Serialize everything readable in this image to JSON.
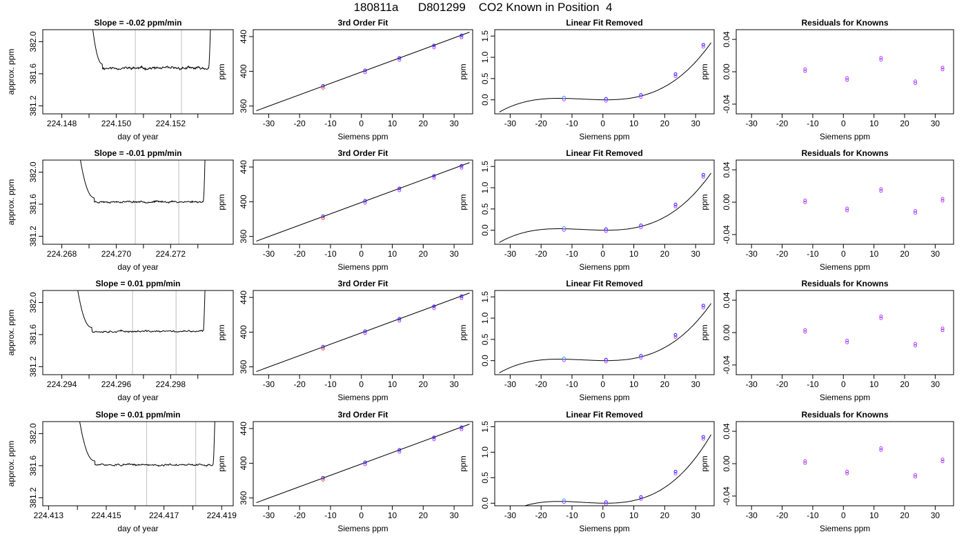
{
  "page": {
    "title": "180811a      D801299    CO2 Known in Position  4"
  },
  "chart_data": [
    {
      "row": 1,
      "col": 1,
      "type": "line",
      "title": "Slope =  -0.02  ppm/min",
      "xlabel": "day of year",
      "ylabel": "approx. ppm",
      "xlim": [
        224.1473,
        224.1543
      ],
      "ylim": [
        381.1,
        382.15
      ],
      "xticks": [
        224.148,
        224.149,
        224.15,
        224.151,
        224.152,
        224.153
      ],
      "xtick_labels": [
        "224.148",
        "",
        "224.150",
        "",
        "224.152",
        ""
      ],
      "yticks": [
        381.2,
        381.6,
        382.0
      ],
      "ytick_labels": [
        "381.2",
        "381.6",
        "382.0"
      ],
      "vlines": [
        224.1507,
        224.1524
      ],
      "trace": {
        "start": 224.149,
        "end": 224.1535,
        "flat_from": 224.1495,
        "flat_to": 224.1534,
        "level": 381.67,
        "noise": 0.014,
        "seed": 11
      }
    },
    {
      "row": 1,
      "col": 2,
      "type": "scatter",
      "title": "3rd Order Fit",
      "xlabel": "Siemens ppm",
      "ylabel": "ppm",
      "xlim": [
        -35,
        36
      ],
      "ylim": [
        351,
        448
      ],
      "xticks": [
        -30,
        -20,
        -10,
        0,
        10,
        20,
        30
      ],
      "xtick_labels": [
        "-30",
        "-20",
        "-10",
        "0",
        "10",
        "20",
        "30"
      ],
      "yticks": [
        360,
        400,
        440
      ],
      "ytick_labels": [
        "360",
        "400",
        "440"
      ],
      "line": {
        "from": [
          -34,
          354.6
        ],
        "to": [
          35,
          445.1
        ]
      },
      "points": [
        [
          -12.4,
          382.1
        ],
        [
          1.2,
          399.9
        ],
        [
          12.3,
          414.2
        ],
        [
          23.5,
          428.6
        ],
        [
          32.4,
          440.2
        ]
      ]
    },
    {
      "row": 1,
      "col": 3,
      "type": "scatter",
      "title": "Linear Fit Removed",
      "xlabel": "Siemens ppm",
      "ylabel": "ppm",
      "xlim": [
        -35,
        36
      ],
      "ylim": [
        -0.33,
        1.65
      ],
      "xticks": [
        -30,
        -20,
        -10,
        0,
        10,
        20,
        30
      ],
      "xtick_labels": [
        "-30",
        "-20",
        "-10",
        "0",
        "10",
        "20",
        "30"
      ],
      "yticks": [
        0,
        0.5,
        1.0,
        1.5
      ],
      "ytick_labels": [
        "0.0",
        "0.5",
        "1.0",
        "1.5"
      ],
      "curve": {
        "x0": 1.0,
        "c2": 0.000466,
        "c3": 2.05e-05,
        "from": -33.5,
        "to": 35
      },
      "points": [
        [
          -12.6,
          0.03
        ],
        [
          1.0,
          0.0
        ],
        [
          12.3,
          0.09
        ],
        [
          23.5,
          0.58
        ],
        [
          32.5,
          1.27
        ]
      ]
    },
    {
      "row": 1,
      "col": 4,
      "type": "scatter",
      "title": "Residuals for Knowns",
      "xlabel": "Siemens ppm",
      "ylabel": "ppm",
      "xlim": [
        -35,
        36
      ],
      "ylim": [
        -0.052,
        0.052
      ],
      "xticks": [
        -30,
        -20,
        -10,
        0,
        10,
        20,
        30
      ],
      "xtick_labels": [
        "-30",
        "-20",
        "-10",
        "0",
        "10",
        "20",
        "30"
      ],
      "yticks": [
        -0.04,
        0.0,
        0.04
      ],
      "ytick_labels": [
        "-0.04",
        "0.00",
        "0.04"
      ],
      "points": [
        [
          -12.5,
          0.002
        ],
        [
          1.2,
          -0.009
        ],
        [
          12.3,
          0.016
        ],
        [
          23.5,
          -0.013
        ],
        [
          32.4,
          0.004
        ]
      ]
    },
    {
      "row": 2,
      "col": 1,
      "type": "line",
      "title": "Slope =  -0.01  ppm/min",
      "xlabel": "day of year",
      "ylabel": "approx. ppm",
      "xlim": [
        224.2673,
        224.2743
      ],
      "ylim": [
        381.1,
        382.15
      ],
      "xticks": [
        224.268,
        224.269,
        224.27,
        224.271,
        224.272,
        224.273
      ],
      "xtick_labels": [
        "224.268",
        "",
        "224.270",
        "",
        "224.272",
        ""
      ],
      "yticks": [
        381.2,
        381.6,
        382.0
      ],
      "ytick_labels": [
        "381.2",
        "381.6",
        "382.0"
      ],
      "vlines": [
        224.2707,
        224.2723
      ],
      "trace": {
        "start": 224.2685,
        "end": 224.2733,
        "flat_from": 224.2692,
        "flat_to": 224.2732,
        "level": 381.63,
        "noise": 0.01,
        "seed": 23
      }
    },
    {
      "row": 2,
      "col": 2,
      "type": "scatter",
      "title": "3rd Order Fit",
      "xlabel": "Siemens ppm",
      "ylabel": "ppm",
      "xlim": [
        -35,
        36
      ],
      "ylim": [
        351,
        448
      ],
      "xticks": [
        -30,
        -20,
        -10,
        0,
        10,
        20,
        30
      ],
      "xtick_labels": [
        "-30",
        "-20",
        "-10",
        "0",
        "10",
        "20",
        "30"
      ],
      "yticks": [
        360,
        400,
        440
      ],
      "ytick_labels": [
        "360",
        "400",
        "440"
      ],
      "line": {
        "from": [
          -34,
          354.6
        ],
        "to": [
          35,
          445.1
        ]
      },
      "points": [
        [
          -12.4,
          382.1
        ],
        [
          1.2,
          399.9
        ],
        [
          12.3,
          414.2
        ],
        [
          23.5,
          428.6
        ],
        [
          32.4,
          440.2
        ]
      ]
    },
    {
      "row": 2,
      "col": 3,
      "type": "scatter",
      "title": "Linear Fit Removed",
      "xlabel": "Siemens ppm",
      "ylabel": "ppm",
      "xlim": [
        -35,
        36
      ],
      "ylim": [
        -0.33,
        1.65
      ],
      "xticks": [
        -30,
        -20,
        -10,
        0,
        10,
        20,
        30
      ],
      "xtick_labels": [
        "-30",
        "-20",
        "-10",
        "0",
        "10",
        "20",
        "30"
      ],
      "yticks": [
        0,
        0.5,
        1.0,
        1.5
      ],
      "ytick_labels": [
        "0.0",
        "0.5",
        "1.0",
        "1.5"
      ],
      "curve": {
        "x0": 1.0,
        "c2": 0.000466,
        "c3": 2.05e-05,
        "from": -33.5,
        "to": 35
      },
      "points": [
        [
          -12.6,
          0.03
        ],
        [
          1.0,
          0.0
        ],
        [
          12.3,
          0.09
        ],
        [
          23.5,
          0.58
        ],
        [
          32.5,
          1.28
        ]
      ]
    },
    {
      "row": 2,
      "col": 4,
      "type": "scatter",
      "title": "Residuals for Knowns",
      "xlabel": "Siemens ppm",
      "ylabel": "ppm",
      "xlim": [
        -35,
        36
      ],
      "ylim": [
        -0.052,
        0.052
      ],
      "xticks": [
        -30,
        -20,
        -10,
        0,
        10,
        20,
        30
      ],
      "xtick_labels": [
        "-30",
        "-20",
        "-10",
        "0",
        "10",
        "20",
        "30"
      ],
      "yticks": [
        -0.04,
        0.0,
        0.04
      ],
      "ytick_labels": [
        "-0.04",
        "0.00",
        "0.04"
      ],
      "points": [
        [
          -12.5,
          0.001
        ],
        [
          1.2,
          -0.009
        ],
        [
          12.3,
          0.015
        ],
        [
          23.5,
          -0.012
        ],
        [
          32.4,
          0.003
        ]
      ]
    },
    {
      "row": 3,
      "col": 1,
      "type": "line",
      "title": "Slope =  0.01  ppm/min",
      "xlabel": "day of year",
      "ylabel": "approx. ppm",
      "xlim": [
        224.2933,
        224.3003
      ],
      "ylim": [
        381.1,
        382.15
      ],
      "xticks": [
        224.294,
        224.295,
        224.296,
        224.297,
        224.298,
        224.299
      ],
      "xtick_labels": [
        "224.294",
        "",
        "224.296",
        "",
        "224.298",
        ""
      ],
      "yticks": [
        381.2,
        381.6,
        382.0
      ],
      "ytick_labels": [
        "381.2",
        "381.6",
        "382.0"
      ],
      "vlines": [
        224.2966,
        224.2982
      ],
      "trace": {
        "start": 224.2944,
        "end": 224.2993,
        "flat_from": 224.2951,
        "flat_to": 224.2992,
        "level": 381.64,
        "noise": 0.01,
        "seed": 37
      }
    },
    {
      "row": 3,
      "col": 2,
      "type": "scatter",
      "title": "3rd Order Fit",
      "xlabel": "Siemens ppm",
      "ylabel": "ppm",
      "xlim": [
        -35,
        36
      ],
      "ylim": [
        351,
        448
      ],
      "xticks": [
        -30,
        -20,
        -10,
        0,
        10,
        20,
        30
      ],
      "xtick_labels": [
        "-30",
        "-20",
        "-10",
        "0",
        "10",
        "20",
        "30"
      ],
      "yticks": [
        360,
        400,
        440
      ],
      "ytick_labels": [
        "360",
        "400",
        "440"
      ],
      "line": {
        "from": [
          -34,
          354.6
        ],
        "to": [
          35,
          445.1
        ]
      },
      "points": [
        [
          -12.4,
          382.1
        ],
        [
          1.2,
          399.9
        ],
        [
          12.3,
          414.2
        ],
        [
          23.5,
          428.6
        ],
        [
          32.4,
          440.2
        ]
      ]
    },
    {
      "row": 3,
      "col": 3,
      "type": "scatter",
      "title": "Linear Fit Removed",
      "xlabel": "Siemens ppm",
      "ylabel": "ppm",
      "xlim": [
        -35,
        36
      ],
      "ylim": [
        -0.33,
        1.65
      ],
      "xticks": [
        -30,
        -20,
        -10,
        0,
        10,
        20,
        30
      ],
      "xtick_labels": [
        "-30",
        "-20",
        "-10",
        "0",
        "10",
        "20",
        "30"
      ],
      "yticks": [
        0,
        0.5,
        1.0,
        1.5
      ],
      "ytick_labels": [
        "0.0",
        "0.5",
        "1.0",
        "1.5"
      ],
      "curve": {
        "x0": 1.0,
        "c2": 0.000466,
        "c3": 2.05e-05,
        "from": -33.5,
        "to": 35
      },
      "points": [
        [
          -12.6,
          0.03
        ],
        [
          1.0,
          0.0
        ],
        [
          12.3,
          0.09
        ],
        [
          23.5,
          0.58
        ],
        [
          32.5,
          1.27
        ]
      ]
    },
    {
      "row": 3,
      "col": 4,
      "type": "scatter",
      "title": "Residuals for Knowns",
      "xlabel": "Siemens ppm",
      "ylabel": "ppm",
      "xlim": [
        -35,
        36
      ],
      "ylim": [
        -0.052,
        0.052
      ],
      "xticks": [
        -30,
        -20,
        -10,
        0,
        10,
        20,
        30
      ],
      "xtick_labels": [
        "-30",
        "-20",
        "-10",
        "0",
        "10",
        "20",
        "30"
      ],
      "yticks": [
        -0.04,
        0.0,
        0.04
      ],
      "ytick_labels": [
        "-0.04",
        "0.00",
        "0.04"
      ],
      "points": [
        [
          -12.5,
          0.002
        ],
        [
          1.2,
          -0.011
        ],
        [
          12.3,
          0.019
        ],
        [
          23.5,
          -0.015
        ],
        [
          32.4,
          0.004
        ]
      ]
    },
    {
      "row": 4,
      "col": 1,
      "type": "line",
      "title": "Slope =  0.01  ppm/min",
      "xlabel": "day of year",
      "ylabel": "approx. ppm",
      "xlim": [
        224.4128,
        224.4194
      ],
      "ylim": [
        381.1,
        382.15
      ],
      "xticks": [
        224.413,
        224.414,
        224.415,
        224.416,
        224.417,
        224.418,
        224.419
      ],
      "xtick_labels": [
        "224.413",
        "",
        "224.415",
        "",
        "224.417",
        "",
        "224.419"
      ],
      "yticks": [
        381.2,
        381.6,
        382.0
      ],
      "ytick_labels": [
        "381.2",
        "381.6",
        "382.0"
      ],
      "vlines": [
        224.4164,
        224.4181
      ],
      "trace": {
        "start": 224.4139,
        "end": 224.4188,
        "flat_from": 224.4146,
        "flat_to": 224.4187,
        "level": 381.61,
        "noise": 0.01,
        "seed": 51
      }
    },
    {
      "row": 4,
      "col": 2,
      "type": "scatter",
      "title": "3rd Order Fit",
      "xlabel": "Siemens ppm",
      "ylabel": "ppm",
      "xlim": [
        -35,
        36
      ],
      "ylim": [
        351,
        448
      ],
      "xticks": [
        -30,
        -20,
        -10,
        0,
        10,
        20,
        30
      ],
      "xtick_labels": [
        "-30",
        "-20",
        "-10",
        "0",
        "10",
        "20",
        "30"
      ],
      "yticks": [
        360,
        400,
        440
      ],
      "ytick_labels": [
        "360",
        "400",
        "440"
      ],
      "line": {
        "from": [
          -34,
          354.6
        ],
        "to": [
          35,
          445.1
        ]
      },
      "points": [
        [
          -12.4,
          382.1
        ],
        [
          1.2,
          399.9
        ],
        [
          12.3,
          414.2
        ],
        [
          23.5,
          428.6
        ],
        [
          32.4,
          440.2
        ]
      ]
    },
    {
      "row": 4,
      "col": 3,
      "type": "scatter",
      "title": "Linear Fit Removed",
      "xlabel": "Siemens ppm",
      "ylabel": "ppm",
      "xlim": [
        -35,
        36
      ],
      "ylim": [
        -0.05,
        1.6
      ],
      "xticks": [
        -30,
        -20,
        -10,
        0,
        10,
        20,
        30
      ],
      "xtick_labels": [
        "-30",
        "-20",
        "-10",
        "0",
        "10",
        "20",
        "30"
      ],
      "yticks": [
        0,
        0.5,
        1.0,
        1.5
      ],
      "ytick_labels": [
        "0.0",
        "0.5",
        "1.0",
        "1.5"
      ],
      "curve": {
        "x0": 1.0,
        "c2": 0.000466,
        "c3": 2.05e-05,
        "from": -33.5,
        "to": 35
      },
      "points": [
        [
          -12.6,
          0.04
        ],
        [
          1.0,
          0.0
        ],
        [
          12.3,
          0.1
        ],
        [
          23.5,
          0.6
        ],
        [
          32.5,
          1.28
        ]
      ]
    },
    {
      "row": 4,
      "col": 4,
      "type": "scatter",
      "title": "Residuals for Knowns",
      "xlabel": "Siemens ppm",
      "ylabel": "ppm",
      "xlim": [
        -35,
        36
      ],
      "ylim": [
        -0.052,
        0.052
      ],
      "xticks": [
        -30,
        -20,
        -10,
        0,
        10,
        20,
        30
      ],
      "xtick_labels": [
        "-30",
        "-20",
        "-10",
        "0",
        "10",
        "20",
        "30"
      ],
      "yticks": [
        -0.04,
        0.0,
        0.04
      ],
      "ytick_labels": [
        "-0.04",
        "0.00",
        "0.04"
      ],
      "points": [
        [
          -12.5,
          0.002
        ],
        [
          1.2,
          -0.011
        ],
        [
          12.3,
          0.018
        ],
        [
          23.5,
          -0.015
        ],
        [
          32.4,
          0.004
        ]
      ]
    }
  ],
  "colors": {
    "axis": "#000000",
    "trace": "#000000",
    "marker_line": "#c8c8c8",
    "point_blue": "#1a1aff",
    "point_purple": "#b040ff",
    "point_cyan": "#2aa8d8",
    "point_red": "#ff4040"
  }
}
